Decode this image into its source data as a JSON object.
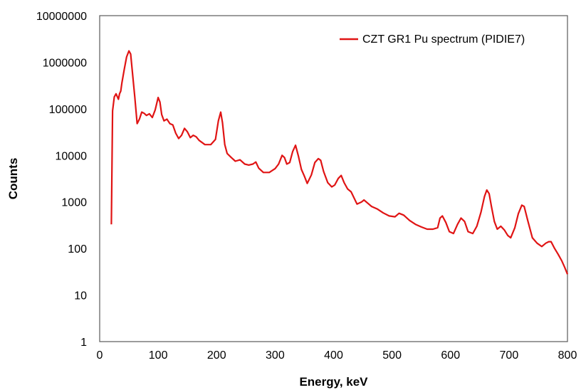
{
  "chart_data": {
    "type": "line",
    "title": "",
    "xlabel": "Energy, keV",
    "ylabel": "Counts",
    "xlim": [
      0,
      800
    ],
    "ylim": [
      1,
      10000000
    ],
    "y_scale": "log",
    "grid": false,
    "legend_position": "top-right",
    "x_ticks": [
      "0",
      "100",
      "200",
      "300",
      "400",
      "500",
      "600",
      "700",
      "800"
    ],
    "y_ticks": [
      "1",
      "10",
      "100",
      "1000",
      "10000",
      "100000",
      "1000000",
      "10000000"
    ],
    "series": [
      {
        "name": "CZT GR1 Pu spectrum (PIDIE7)",
        "color": "#e01414",
        "x": [
          20,
          22,
          25,
          28,
          32,
          34,
          36,
          38,
          42,
          46,
          50,
          53,
          56,
          60,
          64,
          68,
          72,
          76,
          80,
          85,
          90,
          95,
          100,
          103,
          106,
          110,
          115,
          120,
          125,
          130,
          135,
          140,
          145,
          150,
          155,
          160,
          165,
          170,
          180,
          190,
          198,
          203,
          207,
          210,
          214,
          218,
          225,
          232,
          240,
          248,
          255,
          262,
          267,
          272,
          280,
          290,
          300,
          306,
          312,
          316,
          320,
          325,
          330,
          335,
          340,
          345,
          350,
          355,
          362,
          368,
          374,
          378,
          383,
          390,
          397,
          402,
          408,
          413,
          418,
          424,
          430,
          440,
          448,
          452,
          458,
          465,
          475,
          485,
          495,
          505,
          512,
          520,
          530,
          540,
          550,
          560,
          570,
          578,
          582,
          586,
          592,
          598,
          605,
          612,
          618,
          624,
          630,
          638,
          645,
          652,
          658,
          662,
          666,
          670,
          675,
          680,
          686,
          692,
          698,
          703,
          710,
          716,
          722,
          726,
          732,
          740,
          748,
          756,
          763,
          768,
          772,
          778,
          784,
          790,
          795,
          800
        ],
        "values": [
          330,
          90000,
          180000,
          210000,
          160000,
          210000,
          240000,
          360000,
          700000,
          1300000,
          1750000,
          1500000,
          600000,
          180000,
          48000,
          60000,
          85000,
          80000,
          72000,
          78000,
          65000,
          95000,
          175000,
          140000,
          75000,
          55000,
          60000,
          48000,
          45000,
          30000,
          23000,
          27000,
          38000,
          32000,
          24000,
          27000,
          25000,
          21000,
          17000,
          17000,
          22000,
          55000,
          85000,
          50000,
          17000,
          11000,
          9000,
          7500,
          8000,
          6500,
          6200,
          6500,
          7200,
          5300,
          4300,
          4300,
          5200,
          6500,
          10000,
          9000,
          6500,
          7000,
          12000,
          16500,
          9500,
          5000,
          3600,
          2500,
          3800,
          7000,
          8500,
          7800,
          4500,
          2600,
          2100,
          2300,
          3200,
          3700,
          2600,
          1900,
          1650,
          900,
          1000,
          1100,
          950,
          800,
          700,
          580,
          500,
          480,
          570,
          520,
          400,
          330,
          290,
          260,
          260,
          280,
          450,
          500,
          360,
          230,
          210,
          330,
          450,
          380,
          230,
          210,
          300,
          600,
          1300,
          1800,
          1500,
          800,
          380,
          260,
          300,
          250,
          190,
          170,
          280,
          560,
          850,
          800,
          400,
          170,
          130,
          110,
          130,
          140,
          140,
          100,
          75,
          55,
          40,
          28
        ]
      }
    ]
  }
}
